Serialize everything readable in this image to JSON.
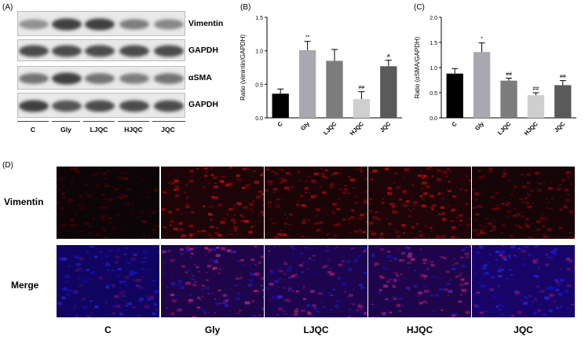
{
  "panels": {
    "a": "(A)",
    "b": "(B)",
    "c": "(C)",
    "d": "(D)"
  },
  "western_blot": {
    "bands": [
      "Vimentin",
      "GAPDH",
      "αSMA",
      "GAPDH"
    ],
    "lanes": [
      "C",
      "Gly",
      "LJQC",
      "HJQC",
      "JQC"
    ],
    "intensity": {
      "vimentin": [
        0.45,
        0.85,
        0.85,
        0.55,
        0.5
      ],
      "gapdh1": [
        0.8,
        0.8,
        0.8,
        0.8,
        0.8
      ],
      "asma": [
        0.6,
        0.85,
        0.6,
        0.55,
        0.6
      ],
      "gapdh2": [
        0.85,
        0.75,
        0.8,
        0.8,
        0.8
      ]
    }
  },
  "chart_data": [
    {
      "type": "bar",
      "panel": "B",
      "categories": [
        "C",
        "Gly",
        "LJQC",
        "HJQC",
        "JQC"
      ],
      "values": [
        0.36,
        1.01,
        0.85,
        0.28,
        0.77
      ],
      "errors": [
        0.07,
        0.13,
        0.17,
        0.11,
        0.09
      ],
      "annotations": [
        "",
        "**",
        "",
        "##",
        "#"
      ],
      "ylabel": "Ratio (vimintin/GAPDH)",
      "ylim": [
        0,
        1.5
      ],
      "yticks": [
        0.0,
        0.5,
        1.0,
        1.5
      ],
      "colors": [
        "#000000",
        "#a8a8b0",
        "#7c7c7c",
        "#cfcfcf",
        "#5a5a5a"
      ]
    },
    {
      "type": "bar",
      "panel": "C",
      "categories": [
        "C",
        "Gly",
        "LJQC",
        "HJQC",
        "JQC"
      ],
      "values": [
        0.88,
        1.31,
        0.74,
        0.45,
        0.65
      ],
      "errors": [
        0.1,
        0.18,
        0.05,
        0.05,
        0.09
      ],
      "annotations": [
        "",
        "*",
        "##",
        "##",
        "##"
      ],
      "ylabel": "Ratio (αSMA/GAPDH)",
      "ylim": [
        0,
        2.0
      ],
      "yticks": [
        0.0,
        0.5,
        1.0,
        1.5,
        2.0
      ],
      "colors": [
        "#000000",
        "#a8a8b0",
        "#7c7c7c",
        "#cfcfcf",
        "#5a5a5a"
      ]
    }
  ],
  "micrographs": {
    "rows": [
      "Vimentin",
      "Merge"
    ],
    "columns": [
      "C",
      "Gly",
      "LJQC",
      "HJQC",
      "JQC"
    ],
    "red_intensity": [
      0.12,
      0.75,
      0.65,
      0.7,
      0.45
    ],
    "blue_intensity": [
      0.8,
      0.45,
      0.55,
      0.5,
      0.9
    ]
  }
}
